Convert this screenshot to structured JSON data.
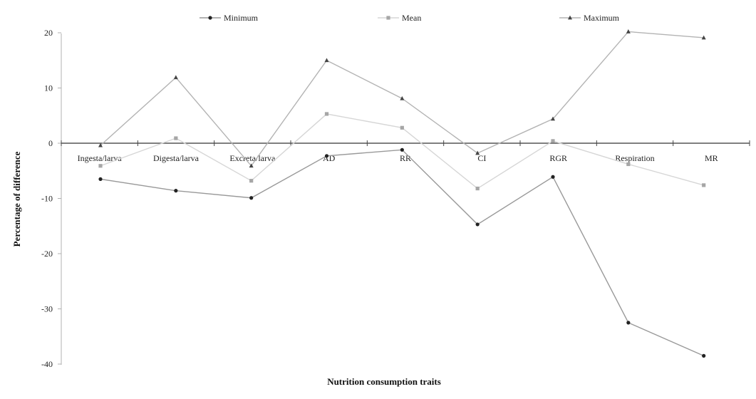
{
  "chart_data": {
    "type": "line",
    "xlabel": "Nutrition consumption traits",
    "ylabel": "Percentage of difference",
    "ylim": [
      -40,
      20
    ],
    "yticks": [
      20,
      10,
      0,
      -10,
      -20,
      -30,
      -40
    ],
    "grid": false,
    "legend_position": "top",
    "categories": [
      "Ingesta/larva",
      "Digesta/larva",
      "Excreta/larva",
      "AD",
      "RR",
      "CI",
      "RGR",
      "Respiration",
      "MR"
    ],
    "series": [
      {
        "name": "Minimum",
        "marker": "circle",
        "color": "#999999",
        "marker_color": "#222222",
        "values": [
          -6.5,
          -8.6,
          -9.9,
          -2.3,
          -1.2,
          -14.7,
          -6.1,
          -32.5,
          -38.5
        ]
      },
      {
        "name": "Mean",
        "marker": "square",
        "color": "#d6d6d6",
        "marker_color": "#a6a6a6",
        "values": [
          -4.1,
          0.9,
          -6.8,
          5.3,
          2.8,
          -8.2,
          0.4,
          -3.8,
          -7.6
        ]
      },
      {
        "name": "Maximum",
        "marker": "triangle",
        "color": "#b3b3b3",
        "marker_color": "#444444",
        "values": [
          -0.4,
          11.9,
          -4.1,
          15.0,
          8.1,
          -1.8,
          4.4,
          20.2,
          19.1
        ]
      }
    ]
  }
}
